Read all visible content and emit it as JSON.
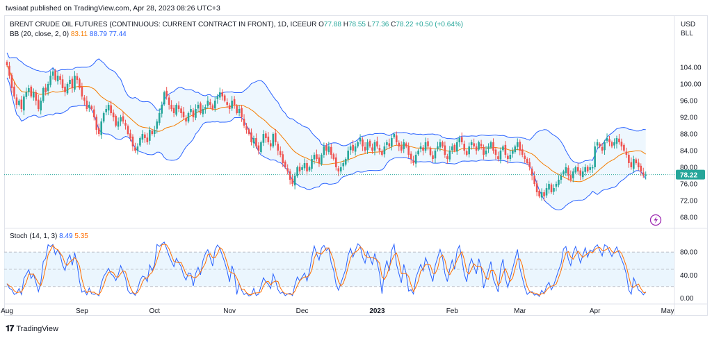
{
  "publisher": "twsiaat published on TradingView.com, Apr 28, 2023 08:26 UTC+3",
  "title": "BRENT CRUDE OIL FUTURES (CONTINUOUS: CURRENT CONTRACT IN FRONT), 1D, ICEEUR",
  "ohlc": {
    "o": "77.88",
    "h": "78.55",
    "l": "77.36",
    "c": "78.22",
    "chg": "+0.50 (+0.64%)"
  },
  "bb_legend": {
    "label": "BB (20, close, 2, 0)",
    "basis": "83.11",
    "upper": "88.79",
    "lower": "77.44"
  },
  "stoch_legend": {
    "label": "Stoch (14, 1, 3)",
    "k": "8.49",
    "d": "5.35"
  },
  "currency": "USD",
  "unit": "BLL",
  "last_price_label": "78.22",
  "footer_brand": "TradingView",
  "colors": {
    "up": "#26a69a",
    "down": "#ef5350",
    "basis": "#f57c00",
    "band": "#2962ff",
    "band_fill": "#e3f2fd",
    "k": "#2962ff",
    "d": "#ff6d00"
  },
  "chart_data": {
    "type": "candlestick",
    "price_ticks": [
      "104.00",
      "100.00",
      "96.00",
      "92.00",
      "88.00",
      "84.00",
      "80.00",
      "76.00",
      "72.00",
      "68.00"
    ],
    "price_ylim": [
      66,
      111
    ],
    "stoch_ticks": [
      "80.00",
      "40.00",
      "0.00"
    ],
    "stoch_ylim": [
      -8,
      108
    ],
    "stoch_band": [
      20,
      80
    ],
    "x_labels": [
      "Aug",
      "Sep",
      "Oct",
      "Nov",
      "Dec",
      "2023",
      "Feb",
      "Mar",
      "Apr",
      "May"
    ],
    "x_label_days": [
      0,
      31,
      61,
      92,
      122,
      153,
      184,
      212,
      243,
      273
    ],
    "closes": [
      [
        0,
        104.5
      ],
      [
        1,
        102
      ],
      [
        2,
        99
      ],
      [
        3,
        97
      ],
      [
        4,
        95
      ],
      [
        5,
        96
      ],
      [
        6,
        94
      ],
      [
        7,
        97
      ],
      [
        8,
        98
      ],
      [
        9,
        99
      ],
      [
        10,
        97
      ],
      [
        11,
        98
      ],
      [
        12,
        96
      ],
      [
        13,
        94
      ],
      [
        14,
        96
      ],
      [
        15,
        99
      ],
      [
        16,
        98
      ],
      [
        17,
        100
      ],
      [
        18,
        102
      ],
      [
        19,
        103
      ],
      [
        20,
        101
      ],
      [
        21,
        102
      ],
      [
        22,
        101
      ],
      [
        23,
        99
      ],
      [
        24,
        98
      ],
      [
        25,
        100
      ],
      [
        26,
        101
      ],
      [
        27,
        99
      ],
      [
        28,
        102
      ],
      [
        29,
        101
      ],
      [
        30,
        99
      ],
      [
        31,
        97
      ],
      [
        32,
        96
      ],
      [
        33,
        94
      ],
      [
        34,
        95
      ],
      [
        35,
        94
      ],
      [
        36,
        92
      ],
      [
        37,
        89
      ],
      [
        38,
        88
      ],
      [
        39,
        91
      ],
      [
        40,
        93
      ],
      [
        41,
        94
      ],
      [
        42,
        95
      ],
      [
        43,
        93
      ],
      [
        44,
        92
      ],
      [
        45,
        90
      ],
      [
        46,
        91
      ],
      [
        47,
        92
      ],
      [
        48,
        91
      ],
      [
        49,
        90
      ],
      [
        50,
        88
      ],
      [
        51,
        87
      ],
      [
        52,
        85
      ],
      [
        53,
        84
      ],
      [
        54,
        85
      ],
      [
        55,
        87
      ],
      [
        56,
        88
      ],
      [
        57,
        87
      ],
      [
        58,
        86
      ],
      [
        59,
        89
      ],
      [
        60,
        88
      ],
      [
        61,
        89
      ],
      [
        62,
        91
      ],
      [
        63,
        93
      ],
      [
        64,
        95
      ],
      [
        65,
        98
      ],
      [
        66,
        97
      ],
      [
        67,
        95
      ],
      [
        68,
        94
      ],
      [
        69,
        93
      ],
      [
        70,
        95
      ],
      [
        71,
        94
      ],
      [
        72,
        93
      ],
      [
        73,
        92
      ],
      [
        74,
        91
      ],
      [
        75,
        93
      ],
      [
        76,
        94
      ],
      [
        77,
        92
      ],
      [
        78,
        94
      ],
      [
        79,
        95
      ],
      [
        80,
        93
      ],
      [
        81,
        94
      ],
      [
        82,
        94.5
      ],
      [
        83,
        96
      ],
      [
        84,
        95
      ],
      [
        85,
        94
      ],
      [
        86,
        96
      ],
      [
        87,
        97
      ],
      [
        88,
        98
      ],
      [
        89,
        97
      ],
      [
        90,
        96
      ],
      [
        91,
        95
      ],
      [
        92,
        94
      ],
      [
        93,
        96
      ],
      [
        94,
        95
      ],
      [
        95,
        93
      ],
      [
        96,
        94
      ],
      [
        97,
        92
      ],
      [
        98,
        90
      ],
      [
        99,
        89
      ],
      [
        100,
        88
      ],
      [
        101,
        86
      ],
      [
        102,
        87
      ],
      [
        103,
        85
      ],
      [
        104,
        84
      ],
      [
        105,
        86
      ],
      [
        106,
        88
      ],
      [
        107,
        87
      ],
      [
        108,
        86
      ],
      [
        109,
        85
      ],
      [
        110,
        88
      ],
      [
        111,
        86
      ],
      [
        112,
        84
      ],
      [
        113,
        83
      ],
      [
        114,
        81
      ],
      [
        115,
        80
      ],
      [
        116,
        79
      ],
      [
        117,
        77
      ],
      [
        118,
        76
      ],
      [
        119,
        78
      ],
      [
        120,
        80
      ],
      [
        121,
        79
      ],
      [
        122,
        80
      ],
      [
        123,
        81
      ],
      [
        124,
        79
      ],
      [
        125,
        80
      ],
      [
        126,
        82
      ],
      [
        127,
        83
      ],
      [
        128,
        82
      ],
      [
        129,
        81
      ],
      [
        130,
        83
      ],
      [
        131,
        85
      ],
      [
        132,
        84
      ],
      [
        133,
        85
      ],
      [
        134,
        83
      ],
      [
        135,
        82
      ],
      [
        136,
        80
      ],
      [
        137,
        79
      ],
      [
        138,
        80
      ],
      [
        139,
        81
      ],
      [
        140,
        82
      ],
      [
        141,
        84
      ],
      [
        142,
        85
      ],
      [
        143,
        84
      ],
      [
        144,
        85
      ],
      [
        145,
        86
      ],
      [
        146,
        87
      ],
      [
        147,
        85
      ],
      [
        148,
        84
      ],
      [
        149,
        86
      ],
      [
        150,
        85
      ],
      [
        151,
        84
      ],
      [
        152,
        86
      ],
      [
        153,
        85
      ],
      [
        154,
        84
      ],
      [
        155,
        83
      ],
      [
        156,
        85
      ],
      [
        157,
        86
      ],
      [
        158,
        85
      ],
      [
        159,
        87
      ],
      [
        160,
        88
      ],
      [
        161,
        86
      ],
      [
        162,
        85
      ],
      [
        163,
        84
      ],
      [
        164,
        86
      ],
      [
        165,
        85
      ],
      [
        166,
        83
      ],
      [
        167,
        82
      ],
      [
        168,
        81
      ],
      [
        169,
        83
      ],
      [
        170,
        84
      ],
      [
        171,
        85
      ],
      [
        172,
        84
      ],
      [
        173,
        86
      ],
      [
        174,
        85
      ],
      [
        175,
        83
      ],
      [
        176,
        82
      ],
      [
        177,
        84
      ],
      [
        178,
        85
      ],
      [
        179,
        86
      ],
      [
        180,
        85
      ],
      [
        181,
        83
      ],
      [
        182,
        82
      ],
      [
        183,
        84
      ],
      [
        184,
        85
      ],
      [
        185,
        84
      ],
      [
        186,
        86
      ],
      [
        187,
        87
      ],
      [
        188,
        86
      ],
      [
        189,
        84
      ],
      [
        190,
        83
      ],
      [
        191,
        85
      ],
      [
        192,
        86
      ],
      [
        193,
        85
      ],
      [
        194,
        84
      ],
      [
        195,
        86
      ],
      [
        196,
        85
      ],
      [
        197,
        83
      ],
      [
        198,
        84
      ],
      [
        199,
        85
      ],
      [
        200,
        86
      ],
      [
        201,
        84
      ],
      [
        202,
        83
      ],
      [
        203,
        82
      ],
      [
        204,
        84
      ],
      [
        205,
        85
      ],
      [
        206,
        83
      ],
      [
        207,
        82
      ],
      [
        208,
        83
      ],
      [
        209,
        84
      ],
      [
        210,
        85
      ],
      [
        211,
        86
      ],
      [
        212,
        84
      ],
      [
        213,
        83
      ],
      [
        214,
        82
      ],
      [
        215,
        81
      ],
      [
        216,
        80
      ],
      [
        217,
        78
      ],
      [
        218,
        76
      ],
      [
        219,
        74
      ],
      [
        220,
        73
      ],
      [
        221,
        74
      ],
      [
        222,
        73
      ],
      [
        223,
        75
      ],
      [
        224,
        76
      ],
      [
        225,
        74
      ],
      [
        226,
        75
      ],
      [
        227,
        76
      ],
      [
        228,
        77
      ],
      [
        229,
        78
      ],
      [
        230,
        79
      ],
      [
        231,
        80
      ],
      [
        232,
        78
      ],
      [
        233,
        77
      ],
      [
        234,
        79
      ],
      [
        235,
        80
      ],
      [
        236,
        79
      ],
      [
        237,
        78
      ],
      [
        238,
        79
      ],
      [
        239,
        80
      ],
      [
        240,
        79
      ],
      [
        241,
        80
      ],
      [
        242,
        80
      ],
      [
        243,
        85
      ],
      [
        244,
        86
      ],
      [
        245,
        85
      ],
      [
        246,
        84
      ],
      [
        247,
        86
      ],
      [
        248,
        87
      ],
      [
        249,
        86
      ],
      [
        250,
        85
      ],
      [
        251,
        86
      ],
      [
        252,
        87
      ],
      [
        253,
        86
      ],
      [
        254,
        85
      ],
      [
        255,
        84
      ],
      [
        256,
        83
      ],
      [
        257,
        81
      ],
      [
        258,
        80
      ],
      [
        259,
        82
      ],
      [
        260,
        81
      ],
      [
        261,
        80
      ],
      [
        262,
        79
      ],
      [
        263,
        78
      ],
      [
        264,
        78.22
      ]
    ]
  }
}
